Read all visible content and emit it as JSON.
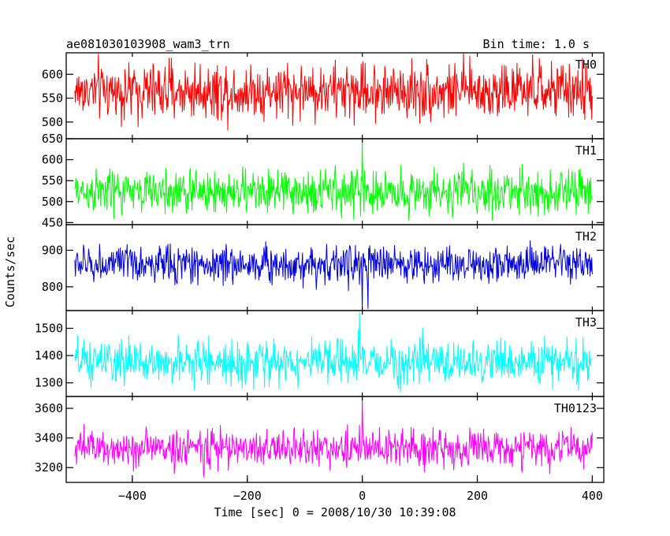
{
  "header": {
    "title": "ae081030103908_wam3_trn",
    "bin_time": "Bin time: 1.0 s"
  },
  "axes": {
    "ylabel": "Counts/sec",
    "xlabel": "Time [sec] 0 = 2008/10/30 10:39:08",
    "x_range": [
      -515,
      420
    ],
    "x_ticks": [
      -400,
      -200,
      0,
      200,
      400
    ],
    "x_tick_labels": [
      "−400",
      "−200",
      "0",
      "200",
      "400"
    ],
    "x_data_range": [
      -500,
      400
    ]
  },
  "chart_data": [
    {
      "type": "line",
      "name": "TH0",
      "color": "#ff0000",
      "ylim": [
        465,
        645
      ],
      "yticks": [
        500,
        550,
        600
      ],
      "ytick_labels": [
        "500",
        "550",
        "600"
      ],
      "stats": {
        "mean": 565,
        "noise": 30,
        "min": 470,
        "max": 645
      },
      "features": []
    },
    {
      "type": "line",
      "name": "TH1",
      "color": "#00ff00",
      "ylim": [
        445,
        650
      ],
      "yticks": [
        450,
        500,
        550,
        600,
        650
      ],
      "ytick_labels": [
        "450",
        "500",
        "550",
        "600",
        "650"
      ],
      "stats": {
        "mean": 523,
        "noise": 27,
        "min": 455,
        "max": 625
      },
      "features": [
        {
          "x": 0,
          "y": 650
        }
      ]
    },
    {
      "type": "line",
      "name": "TH2",
      "color": "#0000dd",
      "ylim": [
        735,
        970
      ],
      "yticks": [
        800,
        900
      ],
      "ytick_labels": [
        "800",
        "900"
      ],
      "stats": {
        "mean": 862,
        "noise": 26,
        "min": 748,
        "max": 965
      },
      "features": [
        {
          "x": 0,
          "y": 738
        },
        {
          "x": 10,
          "y": 740
        }
      ]
    },
    {
      "type": "line",
      "name": "TH3",
      "color": "#00ffff",
      "ylim": [
        1250,
        1565
      ],
      "yticks": [
        1300,
        1400,
        1500
      ],
      "ytick_labels": [
        "1300",
        "1400",
        "1500"
      ],
      "stats": {
        "mean": 1375,
        "noise": 40,
        "min": 1265,
        "max": 1545
      },
      "features": [
        {
          "x": -5,
          "y": 1560
        }
      ]
    },
    {
      "type": "line",
      "name": "TH0123",
      "color": "#ff00ff",
      "ylim": [
        3100,
        3680
      ],
      "yticks": [
        3200,
        3400,
        3600
      ],
      "ytick_labels": [
        "3200",
        "3400",
        "3600"
      ],
      "stats": {
        "mean": 3330,
        "noise": 65,
        "min": 3120,
        "max": 3600
      },
      "features": [
        {
          "x": 0,
          "y": 3680
        }
      ]
    }
  ]
}
